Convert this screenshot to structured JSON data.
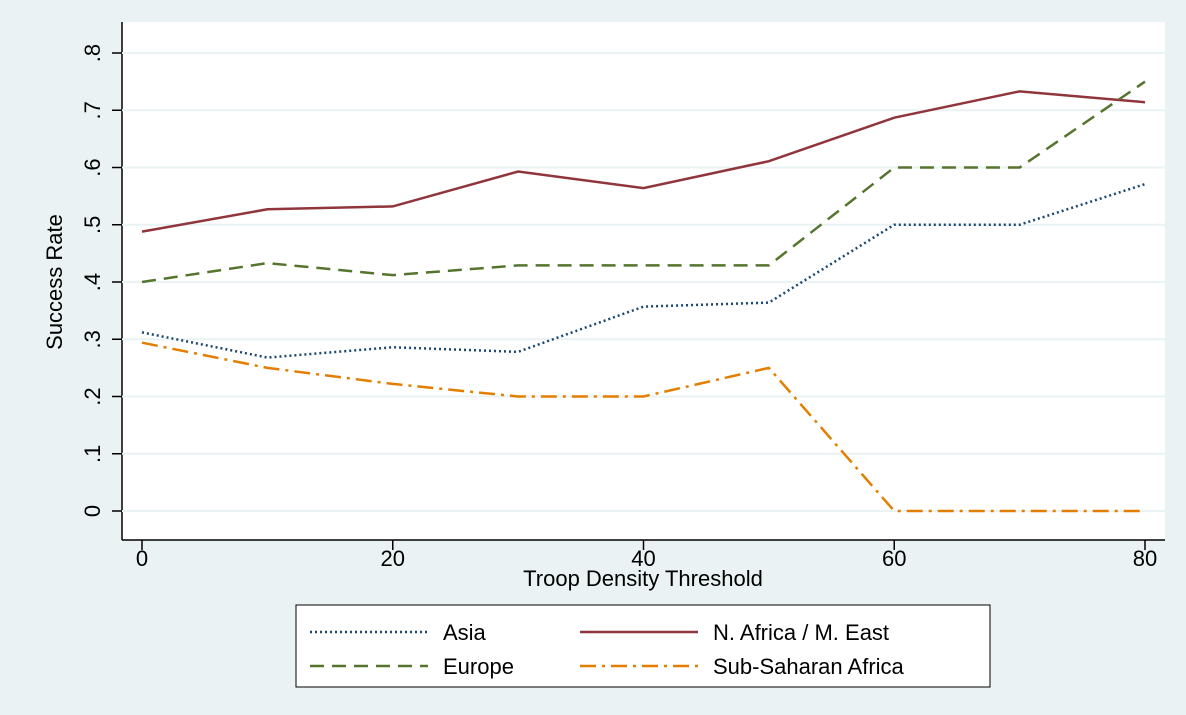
{
  "chart_data": {
    "type": "line",
    "x_label": "Troop Density Threshold",
    "y_label": "Success Rate",
    "x": [
      0,
      10,
      20,
      30,
      40,
      50,
      60,
      70,
      80
    ],
    "series": [
      {
        "name": "Asia",
        "color": "#1a476f",
        "style": "dotted",
        "values": [
          0.312,
          0.268,
          0.286,
          0.278,
          0.357,
          0.364,
          0.5,
          0.5,
          0.571
        ]
      },
      {
        "name": "N. Africa / M. East",
        "color": "#90353b",
        "style": "solid",
        "values": [
          0.488,
          0.527,
          0.532,
          0.593,
          0.564,
          0.611,
          0.687,
          0.733,
          0.714
        ]
      },
      {
        "name": "Europe",
        "color": "#55752f",
        "style": "dashed",
        "values": [
          0.4,
          0.433,
          0.412,
          0.429,
          0.429,
          0.429,
          0.6,
          0.6,
          0.75
        ]
      },
      {
        "name": "Sub-Saharan Africa",
        "color": "#e37e00",
        "style": "dashdot",
        "values": [
          0.294,
          0.25,
          0.222,
          0.2,
          0.2,
          0.25,
          0,
          0,
          0
        ]
      }
    ],
    "xlim": [
      0,
      80
    ],
    "xticks": [
      0,
      20,
      40,
      60,
      80
    ],
    "ylim": [
      0,
      0.8
    ],
    "yticks": [
      0,
      {
        "value": 0.1,
        "label": ".1"
      },
      {
        "value": 0.2,
        "label": ".2"
      },
      {
        "value": 0.3,
        "label": ".3"
      },
      {
        "value": 0.4,
        "label": ".4"
      },
      {
        "value": 0.5,
        "label": ".5"
      },
      {
        "value": 0.6,
        "label": ".6"
      },
      {
        "value": 0.7,
        "label": ".7"
      },
      {
        "value": 0.8,
        "label": ".8"
      }
    ],
    "grid": true,
    "legend": "bottom"
  }
}
